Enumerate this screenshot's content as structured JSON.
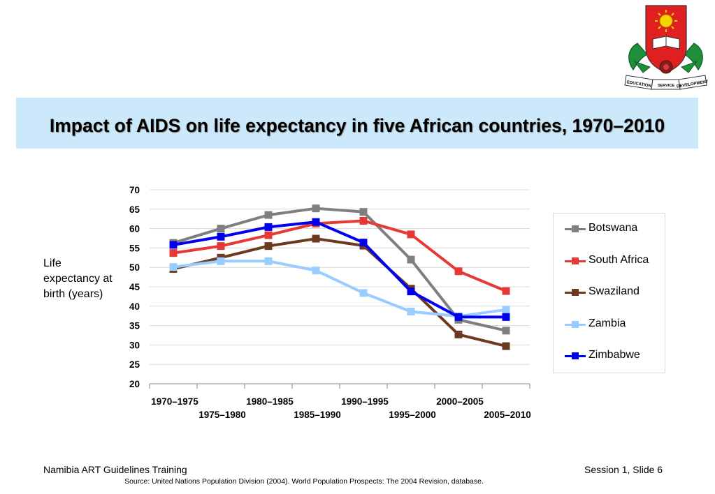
{
  "title": "Impact of AIDS on life expectancy in five African countries, 1970–2010",
  "footer": {
    "left": "Namibia ART Guidelines Training",
    "right": "Session 1, Slide 6",
    "source": "Source:  United Nations Population Division (2004).  World Population Prospects: The 2004 Revision, database."
  },
  "logo": {
    "icon": "university-crest-icon",
    "banner_left": "EDUCATION",
    "banner_right": "DEVELOPMENT",
    "banner_bottom": "SERVICE"
  },
  "colors": {
    "title_band": "#cbe9fa"
  },
  "chart_data": {
    "type": "line",
    "title": "",
    "ylabel": "Life expectancy at birth (years)",
    "xlabel": "",
    "categories": [
      "1970–1975",
      "1975–1980",
      "1980–1985",
      "1985–1990",
      "1990–1995",
      "1995–2000",
      "2000–2005",
      "2005–2010"
    ],
    "ylim": [
      20,
      70
    ],
    "yticks": [
      20,
      25,
      30,
      35,
      40,
      45,
      50,
      55,
      60,
      65,
      70
    ],
    "grid": true,
    "legend_position": "right",
    "series": [
      {
        "name": "Botswana",
        "color": "#7f7f7f",
        "values": [
          56.3,
          60.0,
          63.5,
          65.2,
          64.3,
          52.0,
          36.5,
          33.7
        ]
      },
      {
        "name": "South Africa",
        "color": "#e53935",
        "values": [
          53.7,
          55.5,
          58.3,
          61.3,
          62.0,
          58.5,
          49.0,
          43.9
        ]
      },
      {
        "name": "Swaziland",
        "color": "#6b3a1f",
        "values": [
          49.6,
          52.5,
          55.5,
          57.4,
          55.6,
          44.5,
          32.7,
          29.7
        ]
      },
      {
        "name": "Zambia",
        "color": "#99ccff",
        "values": [
          50.1,
          51.6,
          51.6,
          49.2,
          43.4,
          38.6,
          37.4,
          39.1
        ]
      },
      {
        "name": "Zimbabwe",
        "color": "#0000ee",
        "values": [
          55.8,
          57.9,
          60.4,
          61.7,
          56.4,
          43.8,
          37.2,
          37.2
        ]
      }
    ]
  }
}
